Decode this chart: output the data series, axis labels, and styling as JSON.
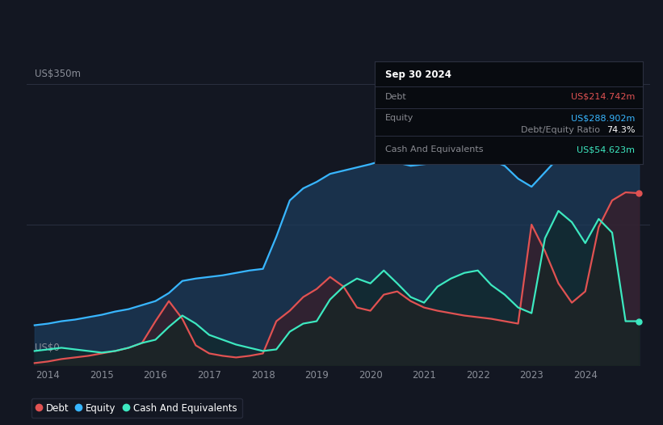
{
  "bg_color": "#131722",
  "plot_bg_color": "#131722",
  "ylabel": "US$350m",
  "y0label": "US$0",
  "xlim_start": 2013.6,
  "xlim_end": 2025.2,
  "ylim": [
    0,
    380
  ],
  "y_top_line": 350,
  "y_mid_line": 175,
  "xticks": [
    2014,
    2015,
    2016,
    2017,
    2018,
    2019,
    2020,
    2021,
    2022,
    2023,
    2024
  ],
  "equity_color": "#38b6ff",
  "debt_color": "#e05252",
  "cash_color": "#3de8c0",
  "equity_fill": "#1c3a5a",
  "debt_fill": "#3d1a24",
  "cash_fill": "#0d2620",
  "grid_color": "#2a3040",
  "tooltip_bg": "#080b10",
  "tooltip_border": "#2c3040",
  "years": [
    2013.75,
    2014.0,
    2014.25,
    2014.5,
    2014.75,
    2015.0,
    2015.25,
    2015.5,
    2015.75,
    2016.0,
    2016.25,
    2016.5,
    2016.75,
    2017.0,
    2017.25,
    2017.5,
    2017.75,
    2018.0,
    2018.25,
    2018.5,
    2018.75,
    2019.0,
    2019.25,
    2019.5,
    2019.75,
    2020.0,
    2020.25,
    2020.5,
    2020.75,
    2021.0,
    2021.25,
    2021.5,
    2021.75,
    2022.0,
    2022.25,
    2022.5,
    2022.75,
    2023.0,
    2023.25,
    2023.5,
    2023.75,
    2024.0,
    2024.25,
    2024.5,
    2024.75,
    2025.0
  ],
  "equity": [
    50,
    52,
    55,
    57,
    60,
    63,
    67,
    70,
    75,
    80,
    90,
    105,
    108,
    110,
    112,
    115,
    118,
    120,
    160,
    205,
    220,
    228,
    238,
    242,
    246,
    250,
    255,
    252,
    248,
    250,
    252,
    255,
    257,
    258,
    255,
    248,
    232,
    222,
    240,
    258,
    272,
    278,
    280,
    284,
    289,
    290
  ],
  "debt": [
    3,
    5,
    8,
    10,
    12,
    15,
    18,
    22,
    28,
    55,
    80,
    58,
    25,
    15,
    12,
    10,
    12,
    15,
    55,
    68,
    85,
    95,
    110,
    98,
    72,
    68,
    88,
    92,
    80,
    72,
    68,
    65,
    62,
    60,
    58,
    55,
    52,
    175,
    142,
    102,
    78,
    92,
    172,
    205,
    215,
    214
  ],
  "cash": [
    18,
    20,
    22,
    20,
    18,
    16,
    18,
    22,
    28,
    32,
    48,
    62,
    52,
    38,
    32,
    26,
    22,
    18,
    20,
    42,
    52,
    55,
    82,
    98,
    108,
    102,
    118,
    102,
    85,
    78,
    98,
    108,
    115,
    118,
    100,
    88,
    72,
    65,
    158,
    192,
    178,
    152,
    182,
    165,
    55,
    55
  ],
  "legend_items": [
    {
      "label": "Debt",
      "color": "#e05252"
    },
    {
      "label": "Equity",
      "color": "#38b6ff"
    },
    {
      "label": "Cash And Equivalents",
      "color": "#3de8c0"
    }
  ],
  "tooltip": {
    "date": "Sep 30 2024",
    "debt_label": "Debt",
    "debt_value": "US$214.742m",
    "debt_color": "#e05252",
    "equity_label": "Equity",
    "equity_value": "US$288.902m",
    "equity_color": "#38b6ff",
    "ratio_pct": "74.3%",
    "ratio_label": "Debt/Equity Ratio",
    "cash_label": "Cash And Equivalents",
    "cash_value": "US$54.623m",
    "cash_color": "#3de8c0",
    "label_color": "#888a90",
    "bg": "#080b10",
    "border": "#2c3040"
  }
}
